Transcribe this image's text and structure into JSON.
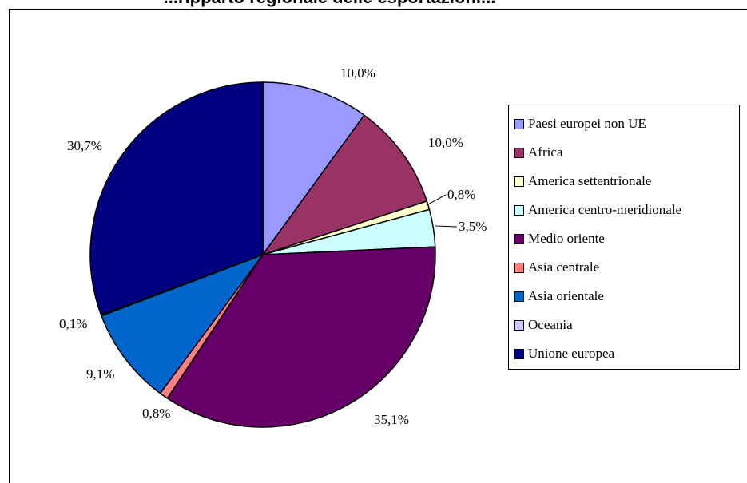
{
  "chart_data": {
    "type": "pie",
    "title": "...ripparto regionale delle esportazioni...",
    "categories": [
      "Paesi europei non UE",
      "Africa",
      "America settentrionale",
      "America centro-meridionale",
      "Medio oriente",
      "Asia centrale",
      "Asia orientale",
      "Oceania",
      "Unione europea"
    ],
    "values": [
      10.0,
      10.0,
      0.8,
      3.5,
      35.1,
      0.8,
      9.1,
      0.1,
      30.7
    ],
    "value_labels": [
      "10,0%",
      "10,0%",
      "0,8%",
      "3,5%",
      "35,1%",
      "0,8%",
      "9,1%",
      "0,1%",
      "30,7%"
    ],
    "colors": [
      "#9999ff",
      "#993366",
      "#ffffcc",
      "#ccffff",
      "#660066",
      "#ff8080",
      "#0066cc",
      "#ccccff",
      "#000080"
    ],
    "legend_position": "right",
    "start_angle": "top",
    "direction": "clockwise"
  }
}
